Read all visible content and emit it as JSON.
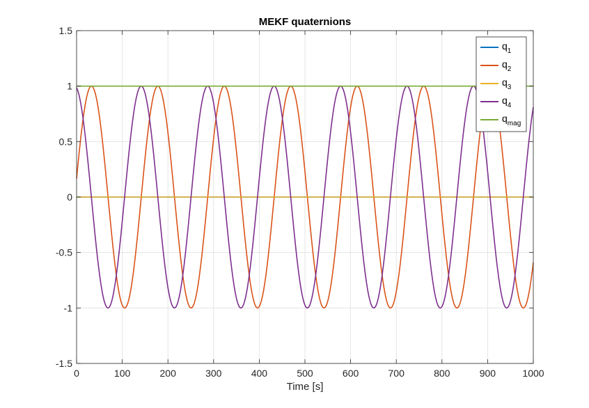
{
  "chart_data": {
    "type": "line",
    "title": "MEKF quaternions",
    "xlabel": "Time [s]",
    "ylabel": "",
    "xlim": [
      0,
      1000
    ],
    "ylim": [
      -1.5,
      1.5
    ],
    "xticks": [
      0,
      100,
      200,
      300,
      400,
      500,
      600,
      700,
      800,
      900,
      1000
    ],
    "yticks": [
      -1.5,
      -1,
      -0.5,
      0,
      0.5,
      1,
      1.5
    ],
    "xtick_labels": [
      "0",
      "100",
      "200",
      "300",
      "400",
      "500",
      "600",
      "700",
      "800",
      "900",
      "1000"
    ],
    "ytick_labels": [
      "-1.5",
      "-1",
      "-0.5",
      "0",
      "0.5",
      "1",
      "1.5"
    ],
    "grid": true,
    "legend_position": "top-right",
    "series": [
      {
        "name": "q1",
        "label_main": "q",
        "label_sub": "1",
        "color": "#0072BD",
        "kind": "constant",
        "value": 0
      },
      {
        "name": "q2",
        "label_main": "q",
        "label_sub": "2",
        "color": "#D95319",
        "kind": "sine",
        "amplitude": 1,
        "period": 145.5,
        "peak_time": 32.5
      },
      {
        "name": "q3",
        "label_main": "q",
        "label_sub": "3",
        "color": "#EDB120",
        "kind": "constant",
        "value": 0
      },
      {
        "name": "q4",
        "label_main": "q",
        "label_sub": "4",
        "color": "#7E2F8E",
        "kind": "sine",
        "amplitude": 1,
        "period": 145.5,
        "peak_time": -4
      },
      {
        "name": "qmag",
        "label_main": "q",
        "label_sub": "mag",
        "color": "#77AC30",
        "kind": "constant",
        "value": 1
      }
    ]
  }
}
